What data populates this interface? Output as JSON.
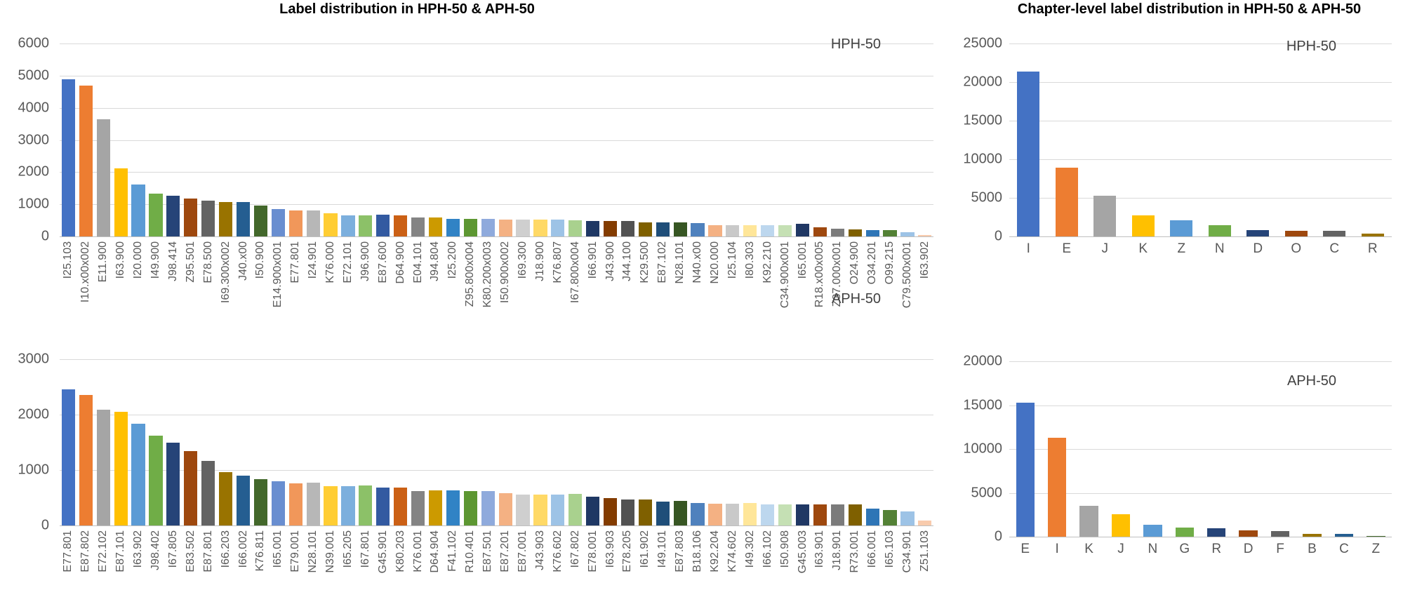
{
  "palette": [
    "#4472C4",
    "#ED7D31",
    "#A5A5A5",
    "#FFC000",
    "#5B9BD5",
    "#70AD47",
    "#264478",
    "#9E480E",
    "#636363",
    "#997300",
    "#255E91",
    "#43682B",
    "#698ED0",
    "#F1975A",
    "#B7B7B7",
    "#FFCD33",
    "#7CAFDD",
    "#8CC168",
    "#335AA1",
    "#CB6015",
    "#848484",
    "#CC9A00",
    "#3183C5",
    "#5D9732",
    "#8FAADC",
    "#F4B183",
    "#CFCFCF",
    "#FFD966",
    "#9DC3E6",
    "#A9D18E",
    "#1F3864",
    "#833C00",
    "#525252",
    "#7F6000",
    "#1F4E79",
    "#375623",
    "#4F81BD",
    "#F4B183",
    "#C9C9C9",
    "#FFE699",
    "#BDD7EE",
    "#C5E0B4",
    "#203864",
    "#9E480E",
    "#7B7B7B",
    "#7F6000",
    "#2E75B6",
    "#538135",
    "#9DC3E6",
    "#F8CBAD"
  ],
  "chart_data": [
    {
      "id": "hph-label",
      "type": "bar",
      "title": "Label distribution in HPH-50 & APH-50",
      "series_label": "HPH-50",
      "categories": [
        "I25.103",
        "I10.x00x002",
        "E11.900",
        "I63.900",
        "I20.000",
        "I49.900",
        "J98.414",
        "Z95.501",
        "E78.500",
        "I69.300x002",
        "J40.x00",
        "I50.900",
        "E14.900x001",
        "E77.801",
        "I24.901",
        "K76.000",
        "E72.101",
        "J96.900",
        "E87.600",
        "D64.900",
        "E04.101",
        "J94.804",
        "I25.200",
        "Z95.800x004",
        "K80.200x003",
        "I50.900x002",
        "I69.300",
        "J18.900",
        "K76.807",
        "I67.800x004",
        "I66.901",
        "J43.900",
        "J44.100",
        "K29.500",
        "E87.102",
        "N28.101",
        "N40.x00",
        "N20.000",
        "I25.104",
        "I80.303",
        "K92.210",
        "C34.900x001",
        "I65.001",
        "R18.x00x005",
        "Z37.000x001",
        "O24.900",
        "O34.201",
        "O99.215",
        "C79.500x001",
        "I63.902"
      ],
      "values": [
        4880,
        4700,
        3650,
        2120,
        1620,
        1330,
        1270,
        1170,
        1120,
        1070,
        1060,
        950,
        845,
        810,
        800,
        710,
        650,
        645,
        668,
        660,
        590,
        580,
        545,
        540,
        535,
        530,
        525,
        520,
        515,
        510,
        490,
        488,
        485,
        440,
        438,
        435,
        420,
        360,
        355,
        352,
        350,
        345,
        390,
        290,
        250,
        225,
        200,
        195,
        130,
        50
      ],
      "ylim": [
        0,
        6000
      ],
      "y_ticks": [
        0,
        1000,
        2000,
        3000,
        4000,
        5000,
        6000
      ],
      "grid": true,
      "tick_rotation": 90,
      "legend_position": "inside-top-right"
    },
    {
      "id": "aph-label",
      "type": "bar",
      "title": null,
      "series_label": "APH-50",
      "categories": [
        "E77.801",
        "E87.802",
        "E72.102",
        "E87.101",
        "I63.902",
        "J98.402",
        "I67.805",
        "E83.502",
        "E87.801",
        "I66.203",
        "I66.002",
        "K76.811",
        "I65.001",
        "E79.001",
        "N28.101",
        "N39.001",
        "I65.205",
        "I67.801",
        "G45.901",
        "K80.203",
        "K76.001",
        "D64.904",
        "F41.102",
        "R10.401",
        "E87.501",
        "E87.201",
        "E87.001",
        "J43.903",
        "K76.602",
        "I67.802",
        "E78.001",
        "I63.903",
        "E78.205",
        "I61.902",
        "I49.101",
        "E87.803",
        "B18.106",
        "K92.204",
        "K74.602",
        "I49.302",
        "I66.102",
        "I50.908",
        "G45.003",
        "I63.901",
        "J18.901",
        "R73.001",
        "I66.001",
        "I65.103",
        "C34.901",
        "Z51.103"
      ],
      "values": [
        2450,
        2350,
        2090,
        2050,
        1840,
        1620,
        1490,
        1340,
        1170,
        960,
        900,
        840,
        800,
        765,
        770,
        705,
        715,
        720,
        685,
        690,
        625,
        628,
        627,
        626,
        620,
        585,
        558,
        553,
        560,
        565,
        522,
        500,
        465,
        464,
        435,
        440,
        400,
        396,
        398,
        402,
        378,
        374,
        376,
        380,
        379,
        385,
        310,
        280,
        250,
        90
      ],
      "ylim": [
        0,
        3000
      ],
      "y_ticks": [
        0,
        1000,
        2000,
        3000
      ],
      "grid": true,
      "tick_rotation": 90,
      "legend_position": "inside-top-right"
    },
    {
      "id": "hph-chapter",
      "type": "bar",
      "title": "Chapter-level label distribution in HPH-50 & APH-50",
      "series_label": "HPH-50",
      "categories": [
        "I",
        "E",
        "J",
        "K",
        "Z",
        "N",
        "D",
        "O",
        "C",
        "R"
      ],
      "values": [
        21400,
        8900,
        5300,
        2700,
        2100,
        1450,
        800,
        760,
        730,
        350
      ],
      "ylim": [
        0,
        25000
      ],
      "y_ticks": [
        0,
        5000,
        10000,
        15000,
        20000,
        25000
      ],
      "grid": true,
      "tick_rotation": 0,
      "legend_position": "inside-top-right"
    },
    {
      "id": "aph-chapter",
      "type": "bar",
      "title": null,
      "series_label": "APH-50",
      "categories": [
        "E",
        "I",
        "K",
        "J",
        "N",
        "G",
        "R",
        "D",
        "F",
        "B",
        "C",
        "Z"
      ],
      "values": [
        15300,
        11300,
        3500,
        2600,
        1400,
        1050,
        950,
        700,
        650,
        350,
        350,
        100
      ],
      "ylim": [
        0,
        20000
      ],
      "y_ticks": [
        0,
        5000,
        10000,
        15000,
        20000
      ],
      "grid": true,
      "tick_rotation": 0,
      "legend_position": "inside-top-right"
    }
  ]
}
